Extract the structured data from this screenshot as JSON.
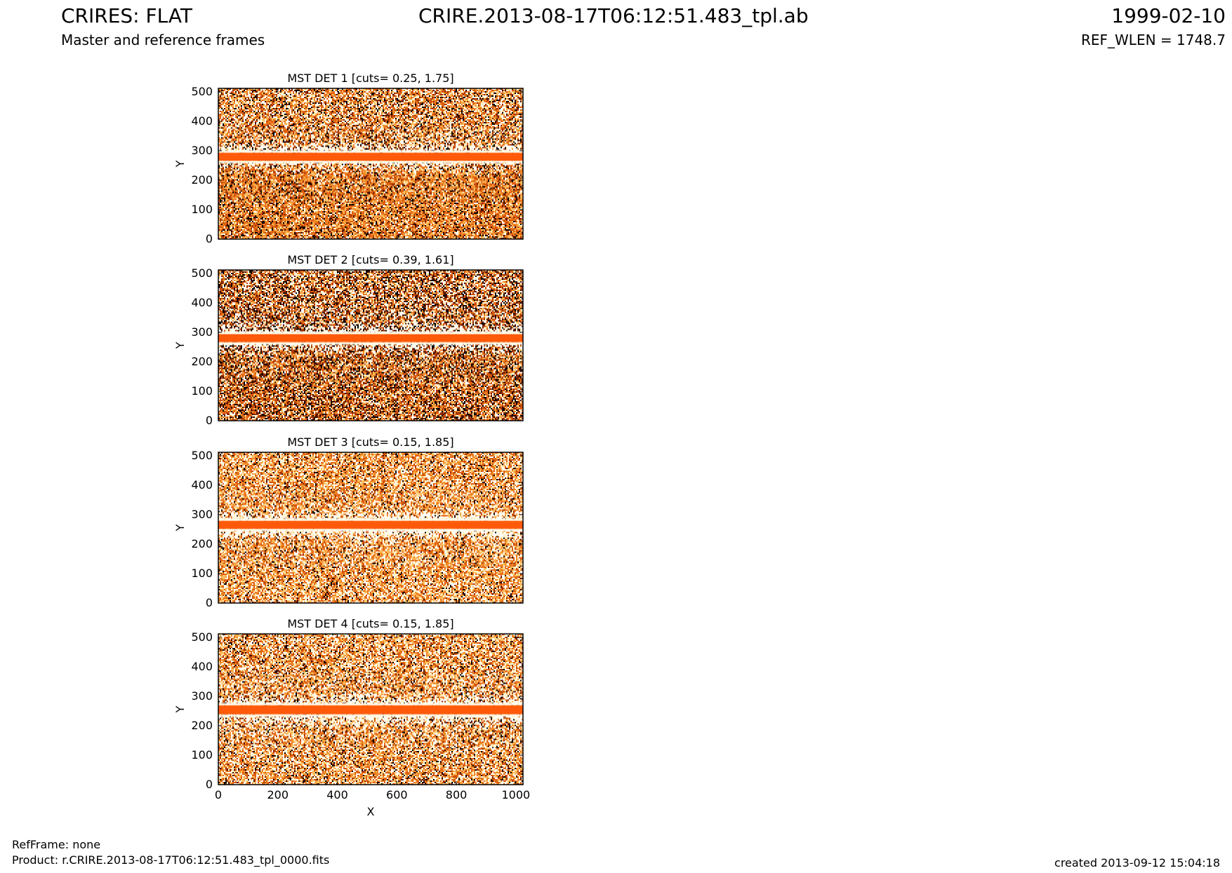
{
  "header": {
    "left_title": "CRIRES: FLAT",
    "center_title": "CRIRE.2013-08-17T06:12:51.483_tpl.ab",
    "right_title": "1999-02-10",
    "left_subtitle": "Master and reference frames",
    "right_subtitle": "REF_WLEN = 1748.7"
  },
  "footer": {
    "refframe": "RefFrame: none",
    "product": "Product: r.CRIRE.2013-08-17T06:12:51.483_tpl_0000.fits",
    "created": "created 2013-09-12 15:04:18"
  },
  "colors": {
    "band": "#ff5a0a",
    "noise_palette": [
      "#ffffff",
      "#fff2c8",
      "#ffc060",
      "#f08a2a",
      "#e06010",
      "#c04808",
      "#902a00",
      "#3a0c00",
      "#000000"
    ]
  },
  "chart_data": [
    {
      "type": "heatmap",
      "title": "MST DET 1 [cuts= 0.25, 1.75]",
      "ylabel": "Y",
      "xlabel": "",
      "xlim": [
        0,
        1024
      ],
      "ylim": [
        0,
        512
      ],
      "xticks": [
        0,
        200,
        400,
        600,
        800,
        1000
      ],
      "yticks": [
        0,
        100,
        200,
        300,
        400,
        500
      ],
      "cuts": [
        0.25,
        1.75
      ],
      "band_y": [
        267,
        292
      ],
      "texture": {
        "white_above": 0.3,
        "white_below": 0.12,
        "dark": 0.22
      }
    },
    {
      "type": "heatmap",
      "title": "MST DET 2 [cuts= 0.39, 1.61]",
      "ylabel": "Y",
      "xlabel": "",
      "xlim": [
        0,
        1024
      ],
      "ylim": [
        0,
        512
      ],
      "xticks": [
        0,
        200,
        400,
        600,
        800,
        1000
      ],
      "yticks": [
        0,
        100,
        200,
        300,
        400,
        500
      ],
      "cuts": [
        0.39,
        1.61
      ],
      "band_y": [
        268,
        293
      ],
      "texture": {
        "white_above": 0.28,
        "white_below": 0.18,
        "dark": 0.38
      }
    },
    {
      "type": "heatmap",
      "title": "MST DET 3 [cuts= 0.15, 1.85]",
      "ylabel": "Y",
      "xlabel": "",
      "xlim": [
        0,
        1024
      ],
      "ylim": [
        0,
        512
      ],
      "xticks": [
        0,
        200,
        400,
        600,
        800,
        1000
      ],
      "yticks": [
        0,
        100,
        200,
        300,
        400,
        500
      ],
      "cuts": [
        0.15,
        1.85
      ],
      "band_y": [
        253,
        278
      ],
      "texture": {
        "white_above": 0.3,
        "white_below": 0.3,
        "dark": 0.1
      }
    },
    {
      "type": "heatmap",
      "title": "MST DET 4 [cuts= 0.15, 1.85]",
      "ylabel": "Y",
      "xlabel": "X",
      "xlim": [
        0,
        1024
      ],
      "ylim": [
        0,
        512
      ],
      "xticks": [
        0,
        200,
        400,
        600,
        800,
        1000
      ],
      "yticks": [
        0,
        100,
        200,
        300,
        400,
        500
      ],
      "cuts": [
        0.15,
        1.85
      ],
      "band_y": [
        240,
        268
      ],
      "texture": {
        "white_above": 0.32,
        "white_below": 0.32,
        "dark": 0.14
      }
    }
  ]
}
